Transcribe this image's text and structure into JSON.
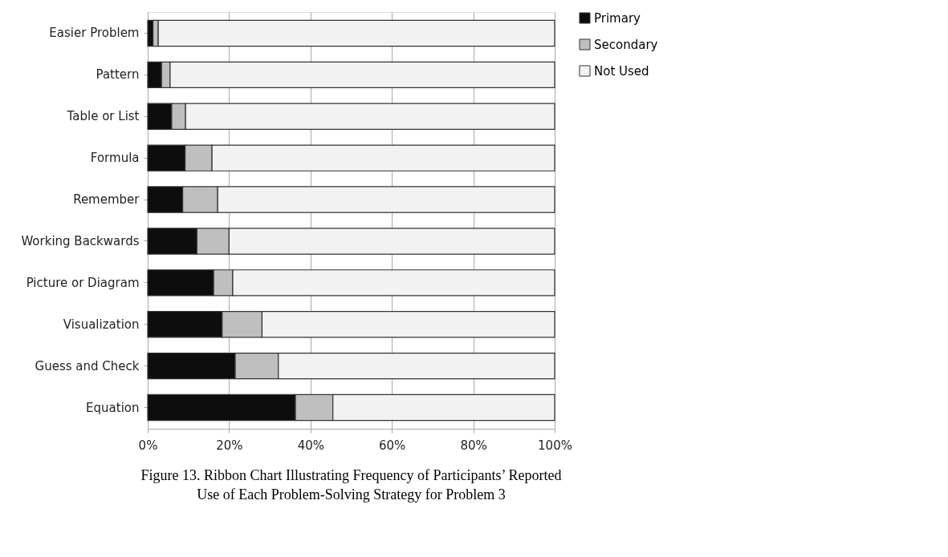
{
  "chart_data": {
    "type": "bar",
    "orientation": "horizontal",
    "stacked": true,
    "categories": [
      "Easier Problem",
      "Pattern",
      "Table or List",
      "Formula",
      "Remember",
      "Working Backwards",
      "Picture or Diagram",
      "Visualization",
      "Guess and Check",
      "Equation"
    ],
    "series": [
      {
        "name": "Primary",
        "color": "#0d0d0d",
        "values": [
          1.3,
          3.4,
          5.9,
          9.2,
          8.6,
          12.1,
          16.2,
          18.3,
          21.5,
          36.3
        ]
      },
      {
        "name": "Secondary",
        "color": "#bfbfbf",
        "values": [
          1.3,
          2.1,
          3.4,
          6.6,
          8.6,
          7.9,
          4.7,
          9.8,
          10.6,
          9.2
        ]
      },
      {
        "name": "Not Used",
        "color": "#f2f2f2",
        "values": [
          97.4,
          94.5,
          90.7,
          84.2,
          82.8,
          80.0,
          79.1,
          71.9,
          67.9,
          54.5
        ]
      }
    ],
    "xlim": [
      0,
      100
    ],
    "xticks": [
      {
        "value": 0,
        "label": "0%"
      },
      {
        "value": 20,
        "label": "20%"
      },
      {
        "value": 40,
        "label": "40%"
      },
      {
        "value": 60,
        "label": "60%"
      },
      {
        "value": 80,
        "label": "80%"
      },
      {
        "value": 100,
        "label": "100%"
      }
    ],
    "grid": "x",
    "legend": "right",
    "annotations": [
      "Figure 13. Ribbon Chart Illustrating Frequency of Participants’ Reported",
      "Use of Each Problem-Solving Strategy for Problem 3"
    ]
  }
}
